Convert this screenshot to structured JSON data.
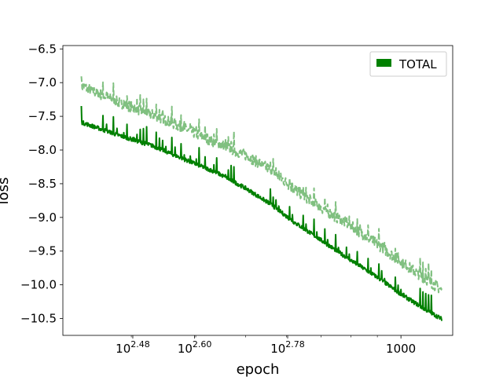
{
  "chart_data": {
    "type": "line",
    "title": "",
    "xlabel": "epoch",
    "ylabel": "loss",
    "x_scale": "log",
    "xlim": [
      221,
      1260
    ],
    "ylim": [
      -10.75,
      -6.45
    ],
    "x_ticks": [
      {
        "value": 302,
        "label_base": "10",
        "label_exp": "2.48",
        "label": ""
      },
      {
        "value": 398,
        "label_base": "10",
        "label_exp": "2.60",
        "label": ""
      },
      {
        "value": 603,
        "label_base": "10",
        "label_exp": "2.78",
        "label": ""
      },
      {
        "value": 1000,
        "label_base": "",
        "label_exp": "",
        "label": "1000"
      }
    ],
    "y_ticks": [
      -6.5,
      -7.0,
      -7.5,
      -8.0,
      -8.5,
      -9.0,
      -9.5,
      -10.0,
      -10.5
    ],
    "y_tick_labels": [
      "−6.5",
      "−7.0",
      "−7.5",
      "−8.0",
      "−8.5",
      "−9.0",
      "−9.5",
      "−10.0",
      "−10.5"
    ],
    "legend": {
      "position": "top-right",
      "entries": [
        {
          "label": "TOTAL",
          "color": "#008000"
        }
      ]
    },
    "grid": false,
    "series": [
      {
        "name": "TOTAL",
        "style": "solid",
        "color": "#008000",
        "x": [
          240,
          280,
          330,
          380,
          440,
          500,
          560,
          620,
          700,
          800,
          900,
          1000,
          1100,
          1200
        ],
        "y": [
          -7.5,
          -7.68,
          -7.85,
          -8.05,
          -8.25,
          -8.48,
          -8.72,
          -8.98,
          -9.25,
          -9.55,
          -9.8,
          -10.05,
          -10.25,
          -10.42
        ]
      },
      {
        "name": "",
        "style": "dashed",
        "color": "#80c080",
        "x": [
          240,
          280,
          330,
          380,
          440,
          500,
          560,
          620,
          700,
          800,
          900,
          1000,
          1100,
          1200
        ],
        "y": [
          -6.97,
          -7.2,
          -7.4,
          -7.6,
          -7.82,
          -8.0,
          -8.22,
          -8.5,
          -8.78,
          -9.05,
          -9.32,
          -9.58,
          -9.8,
          -10.0
        ]
      }
    ]
  }
}
